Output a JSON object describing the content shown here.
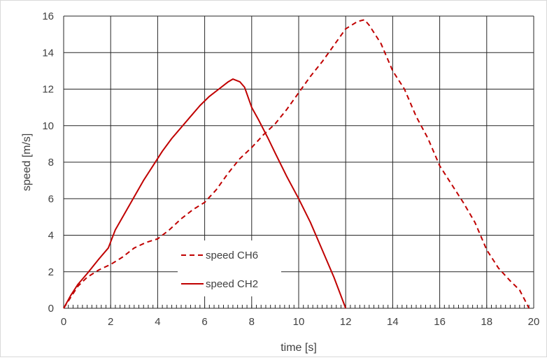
{
  "colors": {
    "series": "#c00000",
    "grid": "#262626",
    "axis_text": "#404040"
  },
  "chart_data": {
    "type": "line",
    "title": "",
    "xlabel": "time [s]",
    "ylabel": "speed [m/s]",
    "xlim": [
      0,
      20
    ],
    "ylim": [
      0,
      16
    ],
    "xticks": [
      "0",
      "2",
      "4",
      "6",
      "8",
      "10",
      "12",
      "14",
      "16",
      "18",
      "20"
    ],
    "yticks": [
      "0",
      "2",
      "4",
      "6",
      "8",
      "10",
      "12",
      "14",
      "16"
    ],
    "grid": true,
    "legend_position": "lower-left-center",
    "series": [
      {
        "name": "speed CH6",
        "style": "dashed",
        "x": [
          0,
          0.3,
          0.6,
          1.0,
          1.5,
          2.0,
          2.5,
          3.0,
          3.5,
          4.0,
          4.5,
          5.0,
          5.5,
          6.0,
          6.5,
          7.0,
          7.5,
          8.0,
          8.5,
          9.0,
          9.5,
          10.0,
          10.5,
          11.0,
          11.5,
          12.0,
          12.5,
          12.8,
          13.0,
          13.5,
          14.0,
          14.5,
          15.0,
          15.5,
          16.0,
          16.5,
          17.0,
          17.5,
          18.0,
          18.5,
          19.0,
          19.4,
          19.6,
          19.8
        ],
        "y": [
          0,
          0.6,
          1.2,
          1.7,
          2.1,
          2.4,
          2.8,
          3.3,
          3.6,
          3.8,
          4.3,
          4.9,
          5.4,
          5.8,
          6.5,
          7.4,
          8.2,
          8.8,
          9.5,
          10.1,
          10.9,
          11.8,
          12.7,
          13.5,
          14.4,
          15.3,
          15.7,
          15.8,
          15.5,
          14.5,
          13.0,
          12.0,
          10.5,
          9.3,
          7.8,
          6.8,
          5.8,
          4.7,
          3.2,
          2.2,
          1.5,
          1.0,
          0.5,
          0.0
        ]
      },
      {
        "name": "speed CH2",
        "style": "solid",
        "x": [
          0,
          0.3,
          0.6,
          1.0,
          1.5,
          1.9,
          2.2,
          2.6,
          3.0,
          3.4,
          3.8,
          4.2,
          4.6,
          5.0,
          5.4,
          5.8,
          6.2,
          6.6,
          7.0,
          7.2,
          7.5,
          7.7,
          8.0,
          8.3,
          8.7,
          9.0,
          9.5,
          10.0,
          10.5,
          11.0,
          11.5,
          12.0
        ],
        "y": [
          0,
          0.7,
          1.3,
          1.9,
          2.7,
          3.3,
          4.3,
          5.2,
          6.1,
          7.0,
          7.8,
          8.6,
          9.3,
          9.9,
          10.5,
          11.1,
          11.6,
          12.0,
          12.4,
          12.55,
          12.4,
          12.1,
          11.0,
          10.3,
          9.3,
          8.5,
          7.2,
          6.0,
          4.7,
          3.2,
          1.7,
          0.0
        ]
      }
    ]
  }
}
